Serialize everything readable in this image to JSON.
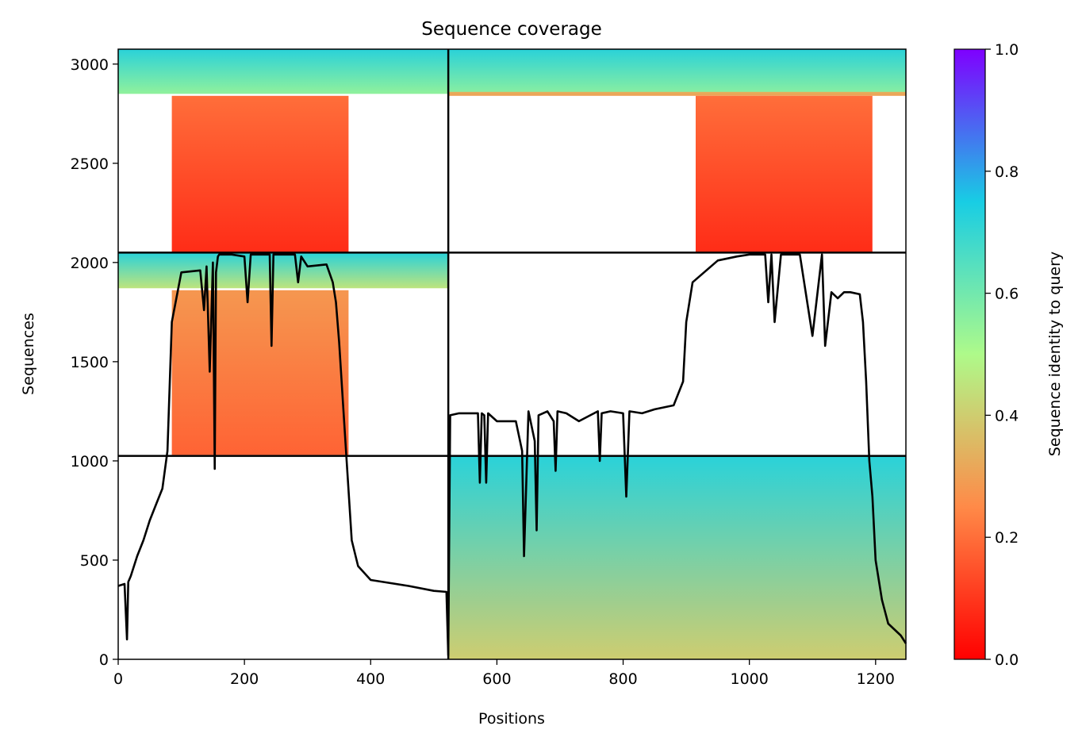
{
  "chart_data": {
    "type": "heatmap",
    "title": "Sequence coverage",
    "xlabel": "Positions",
    "ylabel": "Sequences",
    "xlim": [
      0,
      1248
    ],
    "ylim": [
      0,
      3075
    ],
    "x_ticks": [
      0,
      200,
      400,
      600,
      800,
      1000,
      1200
    ],
    "y_ticks": [
      0,
      500,
      1000,
      1500,
      2000,
      2500,
      3000
    ],
    "colorbar": {
      "label": "Sequence identity to query",
      "range": [
        0,
        1
      ],
      "ticks": [
        "0.0",
        "0.2",
        "0.4",
        "0.6",
        "0.8",
        "1.0"
      ],
      "colormap": "rainbow_r",
      "stops": [
        "#ff0000",
        "#ff8a48",
        "#aefa8a",
        "#18cde4",
        "#7f00ff"
      ]
    },
    "chain_boundaries": {
      "x": [
        523
      ],
      "y": [
        1025,
        2050
      ]
    },
    "msa_blocks": [
      {
        "x0": 0,
        "x1": 523,
        "y_top": 3075,
        "y_bottom": 2850,
        "id_top": 0.72,
        "id_bottom": 0.55
      },
      {
        "x0": 523,
        "x1": 1248,
        "y_top": 3075,
        "y_bottom": 2850,
        "id_top": 0.72,
        "id_bottom": 0.56
      },
      {
        "x0": 523,
        "x1": 1248,
        "y_top": 2860,
        "y_bottom": 2840,
        "id_top": 0.33,
        "id_bottom": 0.3
      },
      {
        "x0": 85,
        "x1": 365,
        "y_top": 2840,
        "y_bottom": 2050,
        "id_top": 0.2,
        "id_bottom": 0.08
      },
      {
        "x0": 915,
        "x1": 1195,
        "y_top": 2840,
        "y_bottom": 2050,
        "id_top": 0.2,
        "id_bottom": 0.08
      },
      {
        "x0": 0,
        "x1": 523,
        "y_top": 2050,
        "y_bottom": 1870,
        "id_top": 0.72,
        "id_bottom": 0.45
      },
      {
        "x0": 85,
        "x1": 365,
        "y_top": 1860,
        "y_bottom": 1030,
        "id_top": 0.28,
        "id_bottom": 0.18
      },
      {
        "x0": 523,
        "x1": 1248,
        "y_top": 1025,
        "y_bottom": 0,
        "id_top": 0.72,
        "id_bottom": 0.4
      }
    ],
    "coverage_line": {
      "x": [
        0,
        10,
        14,
        16,
        20,
        30,
        40,
        50,
        60,
        70,
        78,
        85,
        100,
        130,
        136,
        140,
        145,
        150,
        153,
        155,
        158,
        160,
        170,
        180,
        200,
        205,
        210,
        240,
        243,
        246,
        260,
        280,
        285,
        290,
        300,
        330,
        340,
        345,
        350,
        360,
        365,
        370,
        380,
        400,
        420,
        460,
        500,
        520,
        523,
        526,
        540,
        570,
        573,
        576,
        580,
        583,
        586,
        600,
        630,
        640,
        643,
        650,
        660,
        663,
        666,
        680,
        690,
        693,
        696,
        710,
        730,
        760,
        763,
        766,
        780,
        800,
        805,
        810,
        830,
        850,
        880,
        895,
        900,
        910,
        950,
        980,
        1000,
        1025,
        1030,
        1035,
        1040,
        1050,
        1080,
        1100,
        1115,
        1120,
        1130,
        1140,
        1150,
        1160,
        1175,
        1180,
        1185,
        1190,
        1195,
        1200,
        1210,
        1220,
        1240,
        1248
      ],
      "y": [
        370,
        380,
        100,
        390,
        420,
        520,
        600,
        700,
        780,
        860,
        1050,
        1700,
        1950,
        1960,
        1760,
        1980,
        1450,
        2000,
        960,
        1950,
        2030,
        2040,
        2040,
        2040,
        2030,
        1800,
        2040,
        2040,
        1580,
        2040,
        2040,
        2040,
        1900,
        2030,
        1980,
        1990,
        1900,
        1800,
        1600,
        1100,
        850,
        600,
        470,
        400,
        390,
        370,
        345,
        340,
        20,
        1230,
        1240,
        1240,
        890,
        1240,
        1230,
        890,
        1240,
        1200,
        1200,
        1050,
        520,
        1250,
        1100,
        650,
        1230,
        1250,
        1200,
        950,
        1250,
        1240,
        1200,
        1250,
        1000,
        1240,
        1250,
        1240,
        820,
        1250,
        1240,
        1260,
        1280,
        1400,
        1700,
        1900,
        2010,
        2030,
        2040,
        2040,
        1800,
        2040,
        1700,
        2040,
        2040,
        1630,
        2040,
        1580,
        1850,
        1820,
        1850,
        1850,
        1840,
        1700,
        1400,
        1000,
        820,
        500,
        300,
        180,
        120,
        80
      ]
    }
  }
}
